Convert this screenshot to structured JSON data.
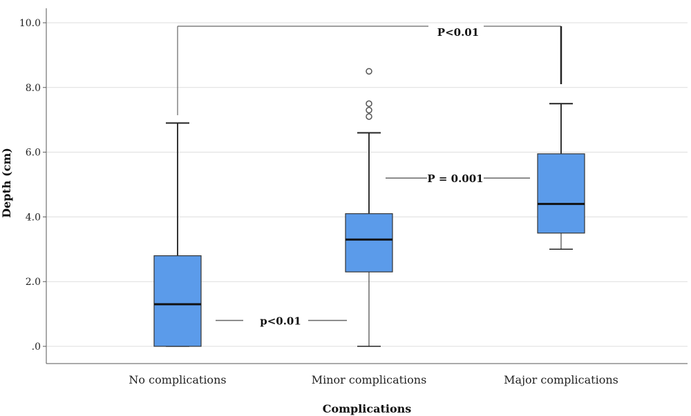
{
  "chart_data": {
    "type": "box",
    "title": "",
    "xlabel": "Complications",
    "ylabel": "Depth (cm)",
    "ylim": [
      0,
      10
    ],
    "yticks": [
      {
        "value": 0,
        "label": ".0"
      },
      {
        "value": 2,
        "label": "2.0"
      },
      {
        "value": 4,
        "label": "4.0"
      },
      {
        "value": 6,
        "label": "6.0"
      },
      {
        "value": 8,
        "label": "8.0"
      },
      {
        "value": 10,
        "label": "10.0"
      }
    ],
    "grid": true,
    "box_color": "#5b9bea",
    "categories": [
      "No complications",
      "Minor complications",
      "Major complications"
    ],
    "boxes": [
      {
        "min": 0,
        "q1": 0,
        "median": 1.3,
        "q3": 2.8,
        "max": 6.9,
        "outliers": []
      },
      {
        "min": 0,
        "q1": 2.3,
        "median": 3.3,
        "q3": 4.1,
        "max": 6.6,
        "outliers": [
          7.1,
          7.3,
          7.5,
          8.5
        ]
      },
      {
        "min": 3.0,
        "q1": 3.5,
        "median": 4.4,
        "q3": 5.95,
        "max": 7.5,
        "outliers": []
      }
    ],
    "annotations": [
      {
        "text": "p<0.01",
        "from": 0,
        "to": 1,
        "y": 0.8
      },
      {
        "text": "P = 0.001",
        "from": 1,
        "to": 2,
        "y": 5.2
      },
      {
        "text": "P<0.01",
        "from": 0,
        "to": 2,
        "y": 9.9
      }
    ]
  }
}
